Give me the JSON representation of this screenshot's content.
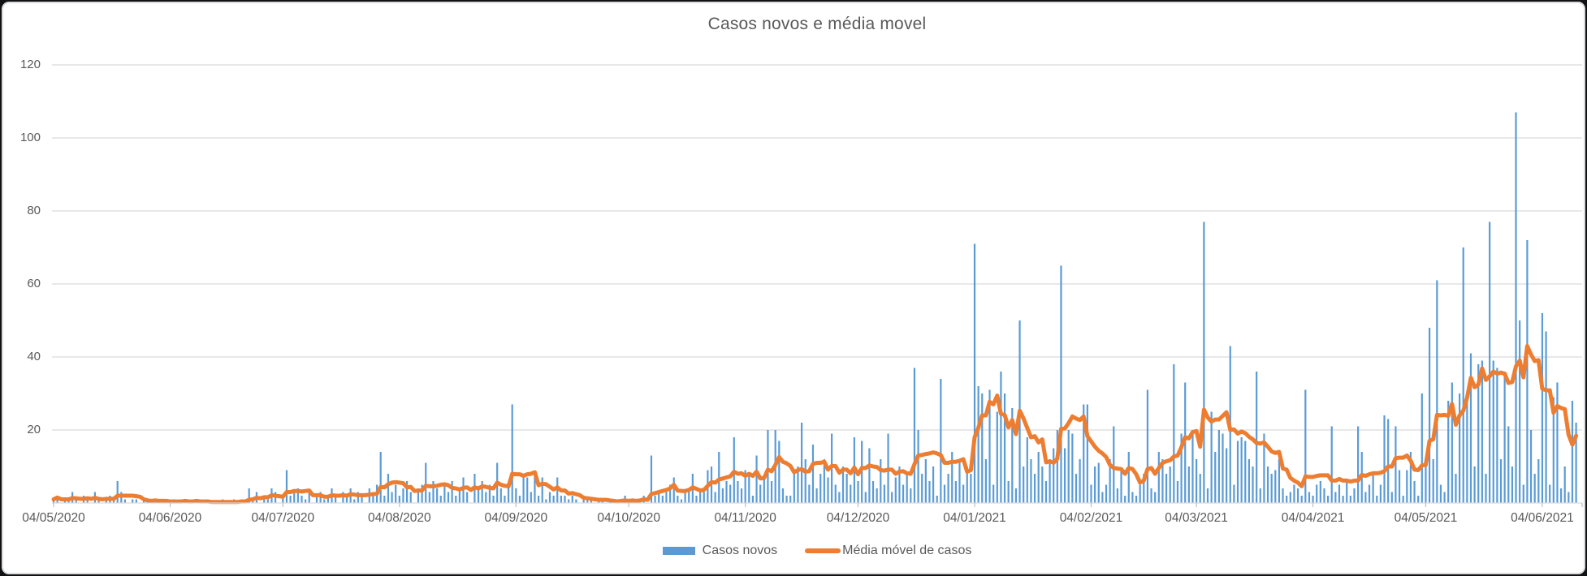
{
  "title": "Casos novos e média movel",
  "legend": [
    {
      "label": "Casos novos",
      "color": "#5B9BD5",
      "marker": "bar"
    },
    {
      "label": "Média móvel de casos",
      "color": "#ED7D31",
      "marker": "line"
    }
  ],
  "colors": {
    "bar": "#5B9BD5",
    "line": "#ED7D31",
    "grid": "#D9D9D9",
    "axis": "#D9D9D9",
    "tick": "#BFBFBF",
    "text": "#595959"
  },
  "chart_data": {
    "type": "bar",
    "title": "Casos novos e média movel",
    "xlabel": "",
    "ylabel": "",
    "ylim": [
      0,
      130
    ],
    "y_ticks": [
      20,
      40,
      60,
      80,
      100,
      120
    ],
    "grid": "horizontal",
    "legend_position": "bottom",
    "x_start_label": "04/05/2020",
    "x_tick_labels": [
      "04/05/2020",
      "04/06/2020",
      "04/07/2020",
      "04/08/2020",
      "04/09/2020",
      "04/10/2020",
      "04/11/2020",
      "04/12/2020",
      "04/01/2021",
      "04/02/2021",
      "04/03/2021",
      "04/04/2021",
      "04/05/2021",
      "04/06/2021"
    ],
    "x_tick_days": [
      0,
      31,
      61,
      92,
      123,
      153,
      184,
      214,
      245,
      276,
      304,
      335,
      365,
      396
    ],
    "series": [
      {
        "name": "Casos novos",
        "type": "bar",
        "color": "#5B9BD5",
        "frequency": "daily",
        "values": [
          1,
          2,
          0,
          1,
          1,
          3,
          1,
          0,
          2,
          1,
          0,
          3,
          1,
          0,
          1,
          2,
          1,
          6,
          3,
          1,
          0,
          1,
          1,
          0,
          1,
          1,
          0,
          1,
          0,
          1,
          0,
          0,
          1,
          0,
          1,
          1,
          0,
          0,
          1,
          0,
          0,
          1,
          0,
          0,
          0,
          1,
          0,
          0,
          1,
          0,
          1,
          0,
          4,
          1,
          3,
          0,
          2,
          1,
          4,
          3,
          0,
          2,
          9,
          2,
          3,
          4,
          2,
          1,
          3,
          0,
          2,
          3,
          1,
          2,
          4,
          2,
          0,
          3,
          2,
          4,
          1,
          3,
          2,
          0,
          4,
          3,
          5,
          14,
          2,
          8,
          3,
          5,
          2,
          4,
          6,
          3,
          0,
          4,
          5,
          11,
          3,
          6,
          4,
          2,
          5,
          3,
          6,
          2,
          4,
          7,
          3,
          0,
          8,
          4,
          6,
          3,
          5,
          2,
          11,
          4,
          2,
          5,
          27,
          4,
          2,
          8,
          7,
          3,
          8,
          2,
          7,
          1,
          3,
          2,
          7,
          2,
          2,
          1,
          2,
          1,
          0,
          2,
          1,
          1,
          0,
          1,
          1,
          0,
          1,
          0,
          0,
          1,
          2,
          0,
          1,
          0,
          1,
          2,
          0,
          13,
          2,
          3,
          2,
          3,
          5,
          7,
          2,
          1,
          3,
          4,
          8,
          2,
          4,
          3,
          9,
          10,
          3,
          14,
          4,
          6,
          5,
          18,
          6,
          4,
          9,
          8,
          2,
          13,
          5,
          7,
          20,
          6,
          20,
          17,
          4,
          2,
          2,
          8,
          10,
          22,
          12,
          5,
          16,
          4,
          8,
          12,
          7,
          19,
          5,
          3,
          10,
          8,
          5,
          18,
          6,
          17,
          3,
          15,
          6,
          4,
          12,
          5,
          19,
          3,
          7,
          10,
          5,
          8,
          4,
          37,
          20,
          8,
          12,
          6,
          10,
          2,
          34,
          5,
          8,
          14,
          6,
          12,
          5,
          10,
          8,
          71,
          32,
          30,
          12,
          31,
          5,
          25,
          36,
          30,
          6,
          26,
          4,
          50,
          10,
          18,
          12,
          8,
          14,
          10,
          6,
          12,
          15,
          20,
          65,
          15,
          20,
          19,
          8,
          12,
          27,
          27,
          5,
          10,
          11,
          3,
          5,
          12,
          21,
          4,
          9,
          2,
          14,
          3,
          2,
          5,
          8,
          31,
          4,
          3,
          14,
          12,
          8,
          10,
          38,
          6,
          19,
          33,
          10,
          20,
          12,
          8,
          77,
          4,
          25,
          14,
          20,
          19,
          15,
          43,
          5,
          17,
          18,
          17,
          12,
          10,
          36,
          4,
          19,
          10,
          8,
          9,
          12,
          4,
          2,
          3,
          5,
          4,
          2,
          31,
          3,
          2,
          5,
          6,
          4,
          2,
          21,
          3,
          5,
          2,
          6,
          2,
          4,
          21,
          14,
          3,
          5,
          8,
          2,
          5,
          24,
          23,
          3,
          21,
          9,
          2,
          9,
          14,
          6,
          2,
          30,
          10,
          48,
          12,
          61,
          5,
          3,
          28,
          33,
          8,
          30,
          70,
          30,
          41,
          10,
          38,
          39,
          8,
          77,
          39,
          37,
          12,
          36,
          21,
          10,
          107,
          50,
          5,
          72,
          20,
          8,
          12,
          52,
          47,
          5,
          29,
          33,
          4,
          10,
          3,
          28,
          22
        ]
      },
      {
        "name": "Média móvel de casos",
        "type": "line",
        "color": "#ED7D31",
        "derivation": "7-day trailing moving average of Casos novos"
      }
    ]
  }
}
